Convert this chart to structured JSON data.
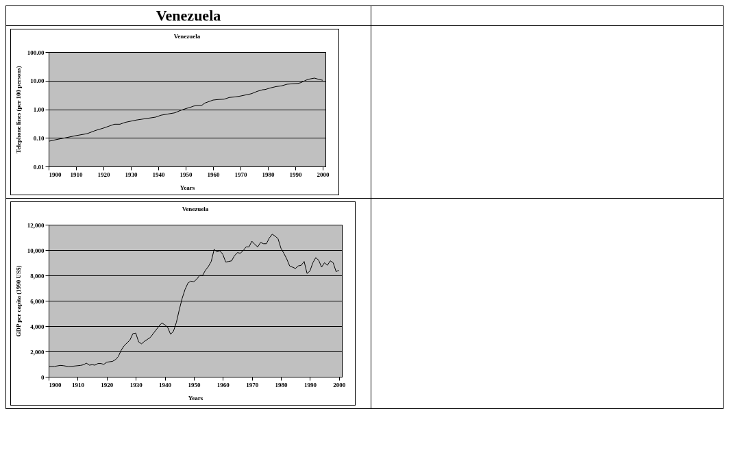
{
  "chart_data": [
    {
      "type": "other",
      "title": "Venezuela"
    },
    {
      "type": "line",
      "title": "Venezuela",
      "xlabel": "Years",
      "ylabel": "Telephone lines (per 100 persons)",
      "log": "y",
      "grid": "y",
      "color": "#000000",
      "x": [
        1900,
        1903,
        1906,
        1910,
        1914,
        1917,
        1920,
        1924,
        1926,
        1928,
        1932,
        1936,
        1939,
        1941,
        1943,
        1946,
        1948,
        1950,
        1952,
        1953,
        1956,
        1957,
        1960,
        1962,
        1964,
        1966,
        1968,
        1970,
        1974,
        1976,
        1978,
        1979,
        1981,
        1983,
        1985,
        1987,
        1989,
        1991,
        1992,
        1994,
        1995,
        1997,
        1998,
        2000
      ],
      "values": [
        0.076,
        0.088,
        0.1,
        0.12,
        0.14,
        0.18,
        0.22,
        0.3,
        0.3,
        0.35,
        0.42,
        0.48,
        0.53,
        0.62,
        0.67,
        0.75,
        0.9,
        1.05,
        1.2,
        1.3,
        1.4,
        1.65,
        2.1,
        2.2,
        2.25,
        2.6,
        2.7,
        2.9,
        3.5,
        4.2,
        4.8,
        4.9,
        5.6,
        6.2,
        6.6,
        7.5,
        7.8,
        8.0,
        8.5,
        10.5,
        11.3,
        12.3,
        11.5,
        10.3
      ],
      "xlim": [
        1900,
        2001
      ],
      "xticks": [
        1900,
        1910,
        1920,
        1930,
        1940,
        1950,
        1960,
        1970,
        1980,
        1990,
        2000
      ],
      "ylim": [
        0.01,
        100
      ],
      "yticks": [
        {
          "value": 0.01,
          "label": "0.01"
        },
        {
          "value": 0.1,
          "label": "0.10"
        },
        {
          "value": 1,
          "label": "1.00"
        },
        {
          "value": 10,
          "label": "10.00"
        },
        {
          "value": 100,
          "label": "100.00"
        }
      ]
    },
    {
      "type": "line",
      "title": "Venezuela",
      "xlabel": "Years",
      "ylabel": "GDP per capita (1990 US$)",
      "grid": "y",
      "color": "#000000",
      "x": [
        1900,
        1902,
        1904,
        1905,
        1907,
        1909,
        1911,
        1912,
        1913,
        1914,
        1915,
        1916,
        1917,
        1918,
        1919,
        1920,
        1922,
        1923,
        1924,
        1925,
        1926,
        1928,
        1929,
        1930,
        1931,
        1932,
        1933,
        1935,
        1936,
        1938,
        1939,
        1940,
        1941,
        1942,
        1943,
        1944,
        1945,
        1946,
        1947,
        1948,
        1949,
        1950,
        1951,
        1952,
        1953,
        1954,
        1955,
        1956,
        1957,
        1958,
        1959,
        1960,
        1961,
        1962,
        1963,
        1964,
        1965,
        1966,
        1967,
        1968,
        1969,
        1970,
        1971,
        1972,
        1973,
        1974,
        1975,
        1976,
        1977,
        1978,
        1979,
        1980,
        1981,
        1982,
        1983,
        1984,
        1985,
        1986,
        1987,
        1988,
        1989,
        1990,
        1991,
        1992,
        1993,
        1994,
        1995,
        1996,
        1997,
        1998,
        1999,
        2000
      ],
      "values": [
        800,
        820,
        900,
        880,
        800,
        850,
        900,
        950,
        1080,
        920,
        950,
        920,
        1050,
        1050,
        980,
        1150,
        1220,
        1350,
        1600,
        2100,
        2450,
        2900,
        3400,
        3450,
        2750,
        2600,
        2800,
        3100,
        3400,
        4000,
        4250,
        4100,
        3900,
        3350,
        3600,
        4300,
        5300,
        6200,
        6900,
        7400,
        7550,
        7500,
        7700,
        8000,
        8000,
        8400,
        8700,
        9100,
        10050,
        9850,
        9950,
        9650,
        9050,
        9100,
        9150,
        9550,
        9800,
        9750,
        9950,
        10250,
        10250,
        10700,
        10450,
        10250,
        10600,
        10500,
        10500,
        10950,
        11250,
        11100,
        10900,
        10150,
        9750,
        9300,
        8750,
        8650,
        8550,
        8750,
        8800,
        9100,
        8150,
        8350,
        9000,
        9400,
        9200,
        8650,
        9000,
        8800,
        9150,
        9000,
        8300,
        8400
      ],
      "xlim": [
        1900,
        2001
      ],
      "xticks": [
        1900,
        1910,
        1920,
        1930,
        1940,
        1950,
        1960,
        1970,
        1980,
        1990,
        2000
      ],
      "ylim": [
        0,
        12000
      ],
      "yticks": [
        {
          "value": 0,
          "label": "0"
        },
        {
          "value": 2000,
          "label": "2,000"
        },
        {
          "value": 4000,
          "label": "4,000"
        },
        {
          "value": 6000,
          "label": "6,000"
        },
        {
          "value": 8000,
          "label": "8,000"
        },
        {
          "value": 10000,
          "label": "10,000"
        },
        {
          "value": 12000,
          "label": "12,000"
        }
      ]
    }
  ]
}
